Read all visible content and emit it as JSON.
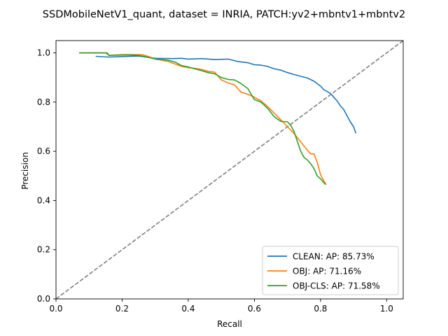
{
  "chart_data": {
    "type": "line",
    "title": "SSDMobileNetV1_quant, dataset = INRIA, PATCH:yv2+mbntv1+mbntv2",
    "xlabel": "Recall",
    "ylabel": "Precision",
    "xlim": [
      0.0,
      1.05
    ],
    "ylim": [
      0.0,
      1.05
    ],
    "xticks": [
      "0.0",
      "0.2",
      "0.4",
      "0.6",
      "0.8",
      "1.0"
    ],
    "yticks": [
      "0.0",
      "0.2",
      "0.4",
      "0.6",
      "0.8",
      "1.0"
    ],
    "grid": false,
    "legend_position": "lower-right",
    "diagonal": {
      "style": "dashed",
      "color": "#808080",
      "from": [
        0,
        0
      ],
      "to": [
        1.05,
        1.05
      ]
    },
    "series": [
      {
        "name": "CLEAN: AP: 85.73%",
        "color": "#1f77b4",
        "points": [
          [
            0.12,
            0.986
          ],
          [
            0.16,
            0.983
          ],
          [
            0.2,
            0.985
          ],
          [
            0.25,
            0.987
          ],
          [
            0.3,
            0.978
          ],
          [
            0.35,
            0.977
          ],
          [
            0.38,
            0.978
          ],
          [
            0.4,
            0.975
          ],
          [
            0.44,
            0.977
          ],
          [
            0.48,
            0.973
          ],
          [
            0.52,
            0.975
          ],
          [
            0.55,
            0.965
          ],
          [
            0.58,
            0.96
          ],
          [
            0.6,
            0.952
          ],
          [
            0.62,
            0.95
          ],
          [
            0.64,
            0.945
          ],
          [
            0.66,
            0.935
          ],
          [
            0.68,
            0.93
          ],
          [
            0.7,
            0.92
          ],
          [
            0.72,
            0.912
          ],
          [
            0.74,
            0.905
          ],
          [
            0.76,
            0.898
          ],
          [
            0.78,
            0.885
          ],
          [
            0.8,
            0.865
          ],
          [
            0.81,
            0.85
          ],
          [
            0.82,
            0.843
          ],
          [
            0.83,
            0.835
          ],
          [
            0.84,
            0.82
          ],
          [
            0.85,
            0.805
          ],
          [
            0.86,
            0.785
          ],
          [
            0.87,
            0.77
          ],
          [
            0.88,
            0.745
          ],
          [
            0.89,
            0.72
          ],
          [
            0.9,
            0.7
          ],
          [
            0.907,
            0.673
          ]
        ]
      },
      {
        "name": "OBJ: AP: 71.16%",
        "color": "#ff7f0e",
        "points": [
          [
            0.07,
            1.0
          ],
          [
            0.15,
            1.0
          ],
          [
            0.16,
            0.99
          ],
          [
            0.2,
            0.993
          ],
          [
            0.26,
            0.993
          ],
          [
            0.28,
            0.985
          ],
          [
            0.3,
            0.975
          ],
          [
            0.32,
            0.97
          ],
          [
            0.34,
            0.965
          ],
          [
            0.36,
            0.955
          ],
          [
            0.38,
            0.945
          ],
          [
            0.4,
            0.94
          ],
          [
            0.42,
            0.937
          ],
          [
            0.44,
            0.933
          ],
          [
            0.46,
            0.925
          ],
          [
            0.48,
            0.922
          ],
          [
            0.5,
            0.89
          ],
          [
            0.52,
            0.878
          ],
          [
            0.54,
            0.87
          ],
          [
            0.56,
            0.84
          ],
          [
            0.58,
            0.832
          ],
          [
            0.6,
            0.82
          ],
          [
            0.62,
            0.805
          ],
          [
            0.64,
            0.782
          ],
          [
            0.66,
            0.755
          ],
          [
            0.68,
            0.728
          ],
          [
            0.7,
            0.7
          ],
          [
            0.72,
            0.672
          ],
          [
            0.74,
            0.638
          ],
          [
            0.76,
            0.605
          ],
          [
            0.77,
            0.59
          ],
          [
            0.78,
            0.59
          ],
          [
            0.79,
            0.555
          ],
          [
            0.8,
            0.505
          ],
          [
            0.81,
            0.48
          ],
          [
            0.817,
            0.465
          ]
        ]
      },
      {
        "name": "OBJ-CLS: AP: 71.58%",
        "color": "#2ca02c",
        "points": [
          [
            0.07,
            1.0
          ],
          [
            0.155,
            1.0
          ],
          [
            0.16,
            0.99
          ],
          [
            0.22,
            0.992
          ],
          [
            0.25,
            0.99
          ],
          [
            0.28,
            0.982
          ],
          [
            0.3,
            0.975
          ],
          [
            0.34,
            0.97
          ],
          [
            0.36,
            0.963
          ],
          [
            0.38,
            0.948
          ],
          [
            0.4,
            0.943
          ],
          [
            0.42,
            0.935
          ],
          [
            0.44,
            0.928
          ],
          [
            0.46,
            0.92
          ],
          [
            0.48,
            0.915
          ],
          [
            0.5,
            0.9
          ],
          [
            0.52,
            0.892
          ],
          [
            0.54,
            0.89
          ],
          [
            0.56,
            0.875
          ],
          [
            0.58,
            0.855
          ],
          [
            0.6,
            0.81
          ],
          [
            0.62,
            0.8
          ],
          [
            0.64,
            0.775
          ],
          [
            0.66,
            0.74
          ],
          [
            0.68,
            0.722
          ],
          [
            0.7,
            0.72
          ],
          [
            0.71,
            0.705
          ],
          [
            0.72,
            0.68
          ],
          [
            0.73,
            0.64
          ],
          [
            0.74,
            0.6
          ],
          [
            0.75,
            0.575
          ],
          [
            0.76,
            0.565
          ],
          [
            0.77,
            0.55
          ],
          [
            0.78,
            0.53
          ],
          [
            0.79,
            0.5
          ],
          [
            0.8,
            0.488
          ],
          [
            0.815,
            0.465
          ]
        ]
      }
    ]
  }
}
